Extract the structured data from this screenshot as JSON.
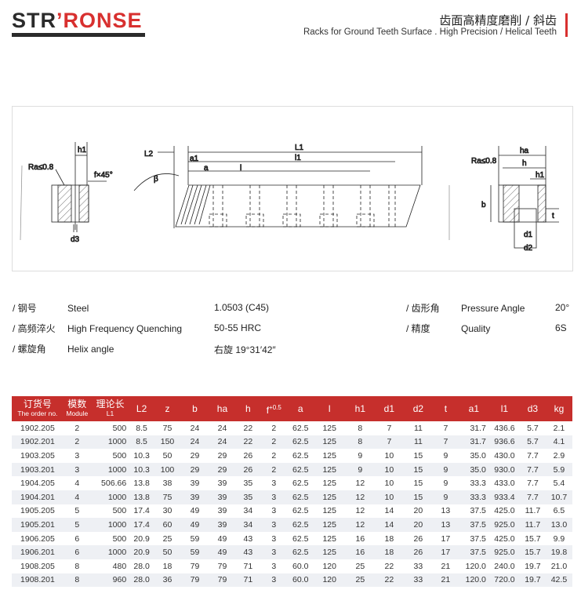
{
  "brand": {
    "logo_dark": "STR",
    "logo_red": "’RONSE"
  },
  "header": {
    "title_cn": "齿面高精度磨削 / 斜齿",
    "title_en": "Racks for Ground Teeth Surface . High Precision / Helical Teeth",
    "accent_color": "#d8302f"
  },
  "drawing": {
    "labels": {
      "h1": "h1",
      "ra_left": "Ra≤0.8",
      "chamfer": "f×45°",
      "d3": "d3",
      "L2": "L2",
      "L1": "L1",
      "a1": "a1",
      "l1": "l1",
      "a": "a",
      "l": "l",
      "beta": "β",
      "ha": "ha",
      "h": "h",
      "ra_right": "Ra≤0.8",
      "b": "b",
      "t": "t",
      "d1": "d1",
      "d2": "d2"
    }
  },
  "specs": {
    "left": [
      {
        "cn": "/ 钢号",
        "en": "Steel",
        "value": "1.0503 (C45)"
      },
      {
        "cn": "/ 高频淬火",
        "en": "High Frequency Quenching",
        "value": "50-55 HRC"
      },
      {
        "cn": "/ 螺旋角",
        "en": "Helix angle",
        "value": "右旋 19°31′42″"
      }
    ],
    "right": [
      {
        "cn": "/ 齿形角",
        "en": "Pressure Angle",
        "value": "20°"
      },
      {
        "cn": "/ 精度",
        "en": "Quality",
        "value": "6S"
      }
    ]
  },
  "table": {
    "header_color": "#c62f2c",
    "headers": [
      {
        "cn": "订货号",
        "en": "The order no."
      },
      {
        "cn": "模数",
        "en": "Module"
      },
      {
        "cn": "理论长",
        "en": "L1"
      },
      {
        "cn": "L2"
      },
      {
        "cn": "z"
      },
      {
        "cn": "b"
      },
      {
        "cn": "ha"
      },
      {
        "cn": "h"
      },
      {
        "cn": "f",
        "sup": "+0.5"
      },
      {
        "cn": "a"
      },
      {
        "cn": "l"
      },
      {
        "cn": "h1"
      },
      {
        "cn": "d1"
      },
      {
        "cn": "d2"
      },
      {
        "cn": "t"
      },
      {
        "cn": "a1"
      },
      {
        "cn": "l1"
      },
      {
        "cn": "d3"
      },
      {
        "cn": "kg"
      }
    ],
    "rows": [
      [
        "1902.205",
        "2",
        "500",
        "8.5",
        "75",
        "24",
        "24",
        "22",
        "2",
        "62.5",
        "125",
        "8",
        "7",
        "11",
        "7",
        "31.7",
        "436.6",
        "5.7",
        "2.1"
      ],
      [
        "1902.201",
        "2",
        "1000",
        "8.5",
        "150",
        "24",
        "24",
        "22",
        "2",
        "62.5",
        "125",
        "8",
        "7",
        "11",
        "7",
        "31.7",
        "936.6",
        "5.7",
        "4.1"
      ],
      [
        "1903.205",
        "3",
        "500",
        "10.3",
        "50",
        "29",
        "29",
        "26",
        "2",
        "62.5",
        "125",
        "9",
        "10",
        "15",
        "9",
        "35.0",
        "430.0",
        "7.7",
        "2.9"
      ],
      [
        "1903.201",
        "3",
        "1000",
        "10.3",
        "100",
        "29",
        "29",
        "26",
        "2",
        "62.5",
        "125",
        "9",
        "10",
        "15",
        "9",
        "35.0",
        "930.0",
        "7.7",
        "5.9"
      ],
      [
        "1904.205",
        "4",
        "506.66",
        "13.8",
        "38",
        "39",
        "39",
        "35",
        "3",
        "62.5",
        "125",
        "12",
        "10",
        "15",
        "9",
        "33.3",
        "433.0",
        "7.7",
        "5.4"
      ],
      [
        "1904.201",
        "4",
        "1000",
        "13.8",
        "75",
        "39",
        "39",
        "35",
        "3",
        "62.5",
        "125",
        "12",
        "10",
        "15",
        "9",
        "33.3",
        "933.4",
        "7.7",
        "10.7"
      ],
      [
        "1905.205",
        "5",
        "500",
        "17.4",
        "30",
        "49",
        "39",
        "34",
        "3",
        "62.5",
        "125",
        "12",
        "14",
        "20",
        "13",
        "37.5",
        "425.0",
        "11.7",
        "6.5"
      ],
      [
        "1905.201",
        "5",
        "1000",
        "17.4",
        "60",
        "49",
        "39",
        "34",
        "3",
        "62.5",
        "125",
        "12",
        "14",
        "20",
        "13",
        "37.5",
        "925.0",
        "11.7",
        "13.0"
      ],
      [
        "1906.205",
        "6",
        "500",
        "20.9",
        "25",
        "59",
        "49",
        "43",
        "3",
        "62.5",
        "125",
        "16",
        "18",
        "26",
        "17",
        "37.5",
        "425.0",
        "15.7",
        "9.9"
      ],
      [
        "1906.201",
        "6",
        "1000",
        "20.9",
        "50",
        "59",
        "49",
        "43",
        "3",
        "62.5",
        "125",
        "16",
        "18",
        "26",
        "17",
        "37.5",
        "925.0",
        "15.7",
        "19.8"
      ],
      [
        "1908.205",
        "8",
        "480",
        "28.0",
        "18",
        "79",
        "79",
        "71",
        "3",
        "60.0",
        "120",
        "25",
        "22",
        "33",
        "21",
        "120.0",
        "240.0",
        "19.7",
        "21.0"
      ],
      [
        "1908.201",
        "8",
        "960",
        "28.0",
        "36",
        "79",
        "79",
        "71",
        "3",
        "60.0",
        "120",
        "25",
        "22",
        "33",
        "21",
        "120.0",
        "720.0",
        "19.7",
        "42.5"
      ]
    ]
  }
}
